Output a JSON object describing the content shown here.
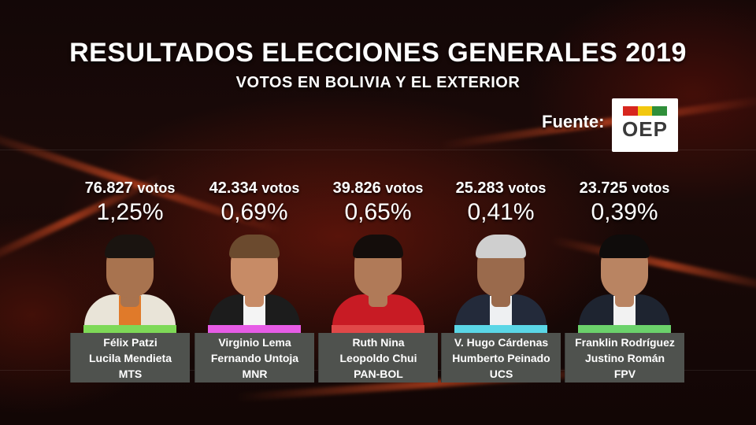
{
  "header": {
    "title": "RESULTADOS ELECCIONES GENERALES 2019",
    "subtitle": "VOTOS EN BOLIVIA Y EL EXTERIOR"
  },
  "source": {
    "label": "Fuente:",
    "logo_text": "OEP",
    "logo_colors": [
      "#d7261e",
      "#f2c80f",
      "#2f8f3a"
    ]
  },
  "candidates": [
    {
      "votes": "76.827",
      "votes_unit": "votos",
      "percent": "1,25%",
      "line1": "Félix Patzi",
      "line2": "Lucila Mendieta",
      "party": "MTS",
      "accent": "#7ed957",
      "torso": "#e9e4d8",
      "shirt": "#e07a2a",
      "skin": "#a8734f",
      "hair": "#1a1410"
    },
    {
      "votes": "42.334",
      "votes_unit": "votos",
      "percent": "0,69%",
      "line1": "Virginio Lema",
      "line2": "Fernando Untoja",
      "party": "MNR",
      "accent": "#e65ce6",
      "torso": "#1c1c1c",
      "shirt": "#f4f4f4",
      "skin": "#c78b66",
      "hair": "#6b4a2e"
    },
    {
      "votes": "39.826",
      "votes_unit": "votos",
      "percent": "0,65%",
      "line1": "Ruth Nina",
      "line2": "Leopoldo Chui",
      "party": "PAN-BOL",
      "accent": "#e04848",
      "torso": "#c81b24",
      "shirt": "#c81b24",
      "skin": "#b07a58",
      "hair": "#140d0b"
    },
    {
      "votes": "25.283",
      "votes_unit": "votos",
      "percent": "0,41%",
      "line1": "V. Hugo Cárdenas",
      "line2": "Humberto Peinado",
      "party": "UCS",
      "accent": "#5ad6e6",
      "torso": "#232a3a",
      "shirt": "#eef0f2",
      "skin": "#9a6a4c",
      "hair": "#cfcfcf"
    },
    {
      "votes": "23.725",
      "votes_unit": "votos",
      "percent": "0,39%",
      "line1": "Franklin Rodríguez",
      "line2": "Justino Román",
      "party": "FPV",
      "accent": "#6bd26b",
      "torso": "#1e2430",
      "shirt": "#f2f2f2",
      "skin": "#b98462",
      "hair": "#0f0c0b"
    }
  ]
}
